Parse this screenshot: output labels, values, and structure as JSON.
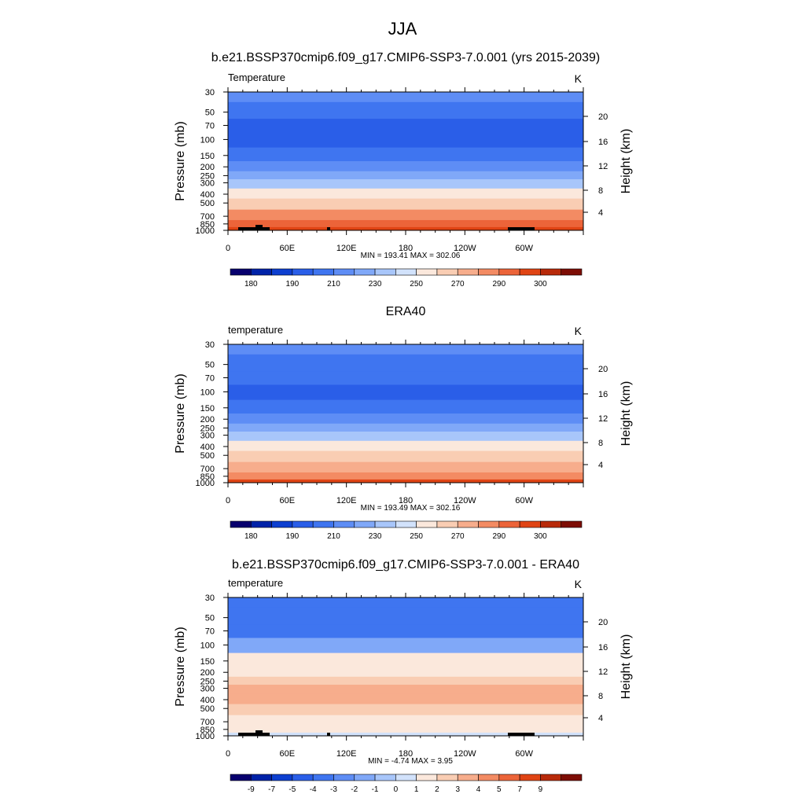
{
  "figure": {
    "title": "JJA",
    "shared": {
      "y_ticks": [
        "30",
        "50",
        "70",
        "100",
        "150",
        "200",
        "250",
        "300",
        "400",
        "500",
        "700",
        "850",
        "1000"
      ],
      "y2_ticks": [
        "20",
        "16",
        "12",
        "8",
        "4"
      ],
      "x_ticks": [
        "0",
        "60E",
        "120E",
        "180",
        "120W",
        "60W"
      ],
      "ylabel": "Pressure (mb)",
      "y2label": "Height (km)"
    }
  },
  "chart_data": [
    {
      "type": "heatmap",
      "title": "b.e21.BSSP370cmip6.f09_g17.CMIP6-SSP3-7.0.001 (yrs 2015-2039)",
      "subtitle_left": "Temperature",
      "subtitle_right": "K",
      "stats": "MIN = 193.41  MAX = 302.06",
      "min": 193.41,
      "max": 302.06,
      "xlabel": "",
      "ylabel": "Pressure (mb)",
      "y2label": "Height (km)",
      "x_ticks": [
        "0",
        "60E",
        "120E",
        "180",
        "120W",
        "60W"
      ],
      "y_ticks": [
        "30",
        "50",
        "70",
        "100",
        "150",
        "200",
        "250",
        "300",
        "400",
        "500",
        "700",
        "850",
        "1000"
      ],
      "y2_ticks": [
        "20",
        "16",
        "12",
        "8",
        "4"
      ],
      "levels_mb": [
        30,
        50,
        70,
        100,
        150,
        200,
        250,
        300,
        400,
        500,
        700,
        850,
        1000
      ],
      "values_by_level": [
        213,
        206,
        199,
        196,
        203,
        214,
        225,
        235,
        251,
        263,
        280,
        290,
        295
      ],
      "colorbar_labels": [
        "180",
        "190",
        "210",
        "230",
        "250",
        "270",
        "290",
        "300"
      ],
      "colorbar_bounds": [
        175,
        180,
        185,
        190,
        200,
        210,
        220,
        230,
        240,
        250,
        260,
        270,
        280,
        290,
        295,
        300,
        305
      ]
    },
    {
      "type": "heatmap",
      "title": "ERA40",
      "subtitle_left": "temperature",
      "subtitle_right": "K",
      "stats": "MIN = 193.49  MAX = 302.16",
      "min": 193.49,
      "max": 302.16,
      "xlabel": "",
      "ylabel": "Pressure (mb)",
      "y2label": "Height (km)",
      "x_ticks": [
        "0",
        "60E",
        "120E",
        "180",
        "120W",
        "60W"
      ],
      "y_ticks": [
        "30",
        "50",
        "70",
        "100",
        "150",
        "200",
        "250",
        "300",
        "400",
        "500",
        "700",
        "850",
        "1000"
      ],
      "y2_ticks": [
        "20",
        "16",
        "12",
        "8",
        "4"
      ],
      "levels_mb": [
        30,
        50,
        70,
        100,
        150,
        200,
        250,
        300,
        400,
        500,
        700,
        850,
        1000
      ],
      "values_by_level": [
        213,
        206,
        200,
        196,
        203,
        213,
        225,
        235,
        250,
        262,
        279,
        289,
        295
      ],
      "colorbar_labels": [
        "180",
        "190",
        "210",
        "230",
        "250",
        "270",
        "290",
        "300"
      ],
      "colorbar_bounds": [
        175,
        180,
        185,
        190,
        200,
        210,
        220,
        230,
        240,
        250,
        260,
        270,
        280,
        290,
        295,
        300,
        305
      ]
    },
    {
      "type": "heatmap",
      "title": "b.e21.BSSP370cmip6.f09_g17.CMIP6-SSP3-7.0.001 - ERA40",
      "subtitle_left": "temperature",
      "subtitle_right": "K",
      "stats": "MIN =  -4.74  MAX =   3.95",
      "min": -4.74,
      "max": 3.95,
      "xlabel": "",
      "ylabel": "Pressure (mb)",
      "y2label": "Height (km)",
      "x_ticks": [
        "0",
        "60E",
        "120E",
        "180",
        "120W",
        "60W"
      ],
      "y_ticks": [
        "30",
        "50",
        "70",
        "100",
        "150",
        "200",
        "250",
        "300",
        "400",
        "500",
        "700",
        "850",
        "1000"
      ],
      "y2_ticks": [
        "20",
        "16",
        "12",
        "8",
        "4"
      ],
      "levels_mb": [
        30,
        50,
        70,
        100,
        150,
        200,
        250,
        300,
        400,
        500,
        700,
        850,
        1000
      ],
      "values_by_level": [
        -3.5,
        -3.5,
        -3.2,
        -1.5,
        1.2,
        1.5,
        2.5,
        3.5,
        3.5,
        2.5,
        1.5,
        1.0,
        0.5
      ],
      "colorbar_labels": [
        "-9",
        "-7",
        "-5",
        "-4",
        "-3",
        "-2",
        "-1",
        "0",
        "1",
        "2",
        "3",
        "4",
        "5",
        "7",
        "9"
      ],
      "colorbar_bounds": [
        -11,
        -9,
        -7,
        -5,
        -4,
        -3,
        -2,
        -1,
        0,
        1,
        2,
        3,
        4,
        5,
        7,
        9,
        11
      ]
    }
  ],
  "colors": {
    "colormap": [
      "#08006e",
      "#0022a8",
      "#0d3fd0",
      "#2a5ee8",
      "#3f75f0",
      "#5e8df5",
      "#80a8f8",
      "#a8c6fa",
      "#d2e2fb",
      "#fbe8dc",
      "#f9cdb3",
      "#f7ad8c",
      "#f38b63",
      "#ec6439",
      "#e04414",
      "#b82a0a",
      "#7d0d05"
    ],
    "terrain": "#000000"
  }
}
